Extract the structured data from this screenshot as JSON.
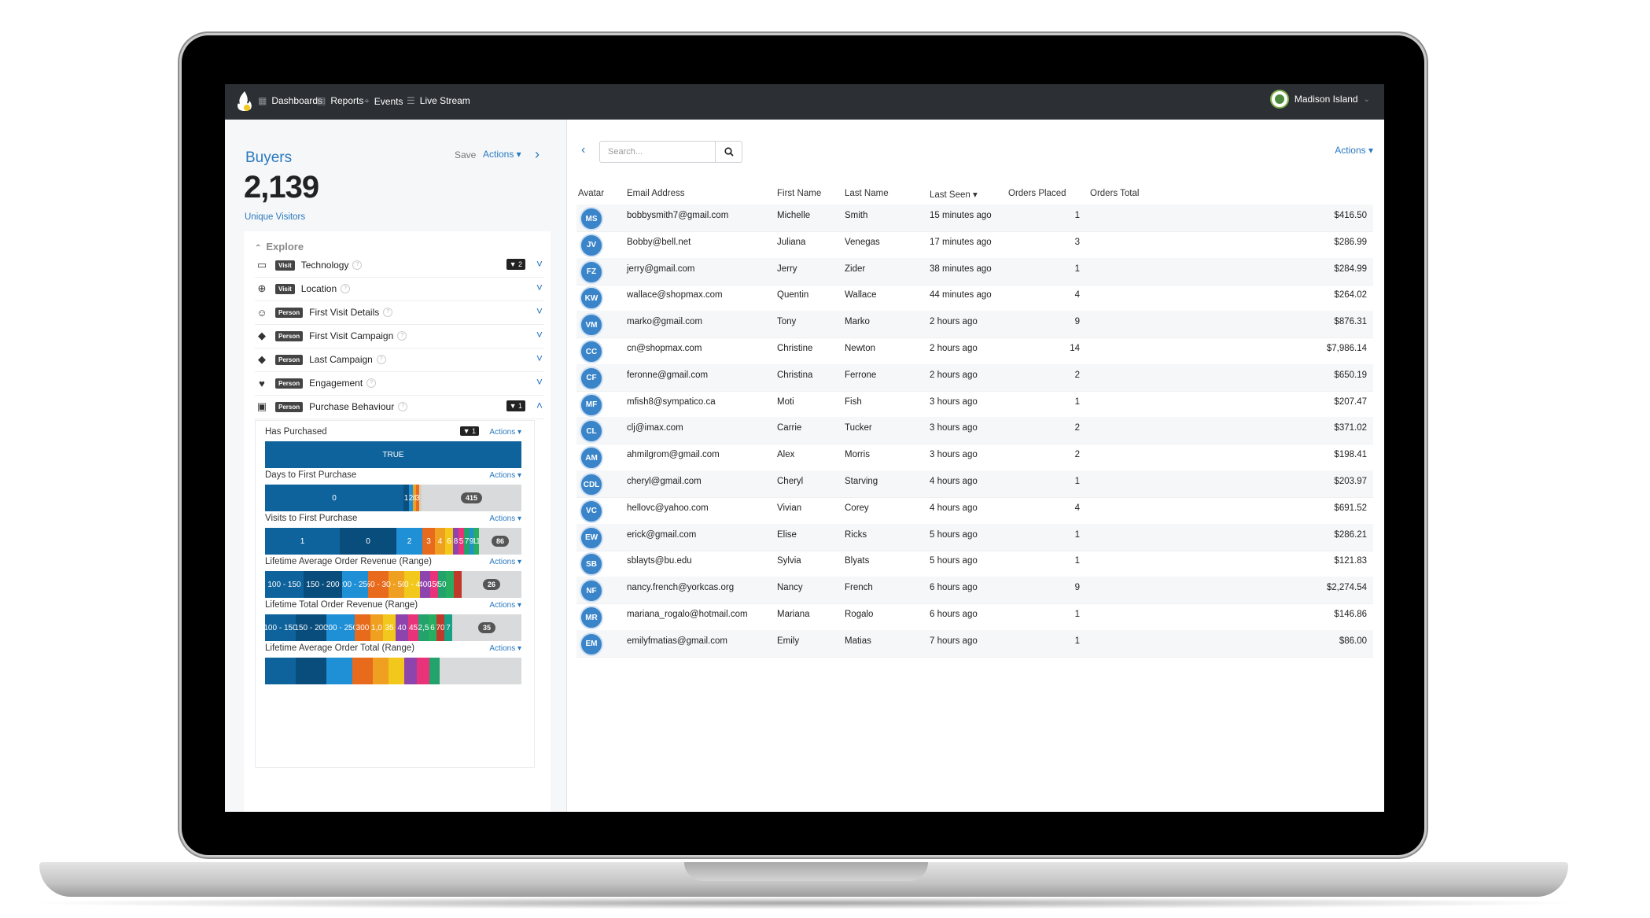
{
  "colors": {
    "accent": "#2a79c0",
    "nav_bg": "#2c2f33",
    "avatar": "#3a84c9",
    "bar_primary": "#0e639c"
  },
  "topnav": {
    "items": [
      {
        "label": "Dashboards",
        "icon": "grid-icon"
      },
      {
        "label": "Reports",
        "icon": "document-icon"
      },
      {
        "label": "Events",
        "icon": "pin-icon"
      },
      {
        "label": "Live Stream",
        "icon": "list-icon"
      }
    ],
    "user": "Madison Island"
  },
  "left": {
    "title": "Buyers",
    "save": "Save",
    "actions": "Actions ▾",
    "count": "2,139",
    "count_label": "Unique Visitors",
    "explore": "Explore",
    "sections": [
      {
        "icon": "monitor-icon",
        "badge": "Visit",
        "label": "Technology",
        "filter": "2"
      },
      {
        "icon": "globe-icon",
        "badge": "Visit",
        "label": "Location",
        "filter": ""
      },
      {
        "icon": "user-plus-icon",
        "badge": "Person",
        "label": "First Visit Details",
        "filter": ""
      },
      {
        "icon": "tag-icon",
        "badge": "Person",
        "label": "First Visit Campaign",
        "filter": ""
      },
      {
        "icon": "tag-icon",
        "badge": "Person",
        "label": "Last Campaign",
        "filter": ""
      },
      {
        "icon": "heart-icon",
        "badge": "Person",
        "label": "Engagement",
        "filter": ""
      },
      {
        "icon": "money-icon",
        "badge": "Person",
        "label": "Purchase Behaviour",
        "filter": "1"
      }
    ],
    "attributes": [
      {
        "title": "Has Purchased",
        "actions": "Actions ▾",
        "filter": "1",
        "segments": [
          {
            "label": "TRUE",
            "share": 1.0,
            "color": "#0e639c"
          }
        ],
        "more": ""
      },
      {
        "title": "Days to First Purchase",
        "actions": "Actions ▾",
        "filter": "",
        "segments": [
          {
            "label": "0",
            "share": 0.54,
            "color": "#0e639c"
          },
          {
            "label": "1",
            "share": 0.02,
            "color": "#0a4f7e"
          },
          {
            "label": "2",
            "share": 0.015,
            "color": "#1f8fd6"
          },
          {
            "label": "4",
            "share": 0.012,
            "color": "#f0a020"
          },
          {
            "label": "3",
            "share": 0.012,
            "color": "#e86a1c"
          },
          {
            "label": "",
            "share": 0.01,
            "color": "#d6d0bb"
          }
        ],
        "more": "415"
      },
      {
        "title": "Visits to First Purchase",
        "actions": "Actions ▾",
        "filter": "",
        "segments": [
          {
            "label": "1",
            "share": 0.29,
            "color": "#0e639c"
          },
          {
            "label": "0",
            "share": 0.22,
            "color": "#094d7c"
          },
          {
            "label": "2",
            "share": 0.1,
            "color": "#1f8fd6"
          },
          {
            "label": "3",
            "share": 0.05,
            "color": "#e86a1c"
          },
          {
            "label": "4",
            "share": 0.04,
            "color": "#f0a020"
          },
          {
            "label": "6",
            "share": 0.03,
            "color": "#f2c81d"
          },
          {
            "label": "8",
            "share": 0.02,
            "color": "#8e44ad"
          },
          {
            "label": "5",
            "share": 0.02,
            "color": "#e8337a"
          },
          {
            "label": "7",
            "share": 0.02,
            "color": "#22a36c"
          },
          {
            "label": "9",
            "share": 0.015,
            "color": "#1f8fd6"
          },
          {
            "label": "11",
            "share": 0.02,
            "color": "#27ae60"
          }
        ],
        "more": "86"
      },
      {
        "title": "Lifetime Average Order Revenue (Range)",
        "actions": "Actions ▾",
        "filter": "",
        "segments": [
          {
            "label": "100 - 150",
            "share": 0.15,
            "color": "#0e639c"
          },
          {
            "label": "150 - 200",
            "share": 0.15,
            "color": "#094d7c"
          },
          {
            "label": "200 - 250",
            "share": 0.1,
            "color": "#1f8fd6"
          },
          {
            "label": "250 - 300",
            "share": 0.08,
            "color": "#e86a1c"
          },
          {
            "label": "0 - 50",
            "share": 0.06,
            "color": "#f0a020"
          },
          {
            "label": "350 - 400",
            "share": 0.06,
            "color": "#f2c81d"
          },
          {
            "label": "400",
            "share": 0.04,
            "color": "#8e44ad"
          },
          {
            "label": "450",
            "share": 0.03,
            "color": "#e8337a"
          },
          {
            "label": "50",
            "share": 0.03,
            "color": "#22a36c"
          },
          {
            "label": "",
            "share": 0.03,
            "color": "#27ae60"
          },
          {
            "label": "",
            "share": 0.03,
            "color": "#c0392b"
          }
        ],
        "more": "26"
      },
      {
        "title": "Lifetime Total Order Revenue (Range)",
        "actions": "Actions ▾",
        "filter": "",
        "segments": [
          {
            "label": "100 - 150",
            "share": 0.12,
            "color": "#0e639c"
          },
          {
            "label": "150 - 200",
            "share": 0.12,
            "color": "#094d7c"
          },
          {
            "label": "200 - 250",
            "share": 0.11,
            "color": "#1f8fd6"
          },
          {
            "label": "300",
            "share": 0.06,
            "color": "#e86a1c"
          },
          {
            "label": "1,0",
            "share": 0.05,
            "color": "#f0a020"
          },
          {
            "label": "35",
            "share": 0.05,
            "color": "#f2c81d"
          },
          {
            "label": "40",
            "share": 0.05,
            "color": "#8e44ad"
          },
          {
            "label": "45",
            "share": 0.04,
            "color": "#e8337a"
          },
          {
            "label": "2,5",
            "share": 0.04,
            "color": "#22a36c"
          },
          {
            "label": "6",
            "share": 0.03,
            "color": "#27ae60"
          },
          {
            "label": "70",
            "share": 0.03,
            "color": "#c0392b"
          },
          {
            "label": "7",
            "share": 0.03,
            "color": "#16a085"
          }
        ],
        "more": "35"
      },
      {
        "title": "Lifetime Average Order Total (Range)",
        "actions": "Actions ▾",
        "filter": "",
        "segments": [
          {
            "label": "",
            "share": 0.12,
            "color": "#0e639c"
          },
          {
            "label": "",
            "share": 0.12,
            "color": "#094d7c"
          },
          {
            "label": "",
            "share": 0.1,
            "color": "#1f8fd6"
          },
          {
            "label": "",
            "share": 0.08,
            "color": "#e86a1c"
          },
          {
            "label": "",
            "share": 0.06,
            "color": "#f0a020"
          },
          {
            "label": "",
            "share": 0.06,
            "color": "#f2c81d"
          },
          {
            "label": "",
            "share": 0.05,
            "color": "#8e44ad"
          },
          {
            "label": "",
            "share": 0.05,
            "color": "#e8337a"
          },
          {
            "label": "",
            "share": 0.04,
            "color": "#22a36c"
          }
        ],
        "more": ""
      }
    ]
  },
  "right": {
    "search_placeholder": "Search...",
    "actions": "Actions ▾",
    "columns": [
      "Avatar",
      "Email Address",
      "First Name",
      "Last Name",
      "Last Seen ▾",
      "Orders Placed",
      "Orders Total"
    ],
    "rows": [
      [
        "MS",
        "bobbysmith7@gmail.com",
        "Michelle",
        "Smith",
        "15 minutes ago",
        "1",
        "$416.50"
      ],
      [
        "JV",
        "Bobby@bell.net",
        "Juliana",
        "Venegas",
        "17 minutes ago",
        "3",
        "$286.99"
      ],
      [
        "FZ",
        "jerry@gmail.com",
        "Jerry",
        "Zider",
        "38 minutes ago",
        "1",
        "$284.99"
      ],
      [
        "KW",
        "wallace@shopmax.com",
        "Quentin",
        "Wallace",
        "44 minutes ago",
        "4",
        "$264.02"
      ],
      [
        "VM",
        "marko@gmail.com",
        "Tony",
        "Marko",
        "2 hours ago",
        "9",
        "$876.31"
      ],
      [
        "CC",
        "cn@shopmax.com",
        "Christine",
        "Newton",
        "2 hours ago",
        "14",
        "$7,986.14"
      ],
      [
        "CF",
        "feronne@gmail.com",
        "Christina",
        "Ferrone",
        "2 hours ago",
        "2",
        "$650.19"
      ],
      [
        "MF",
        "mfish8@sympatico.ca",
        "Moti",
        "Fish",
        "3 hours ago",
        "1",
        "$207.47"
      ],
      [
        "CL",
        "clj@imax.com",
        "Carrie",
        "Tucker",
        "3 hours ago",
        "2",
        "$371.02"
      ],
      [
        "AM",
        "ahmilgrom@gmail.com",
        "Alex",
        "Morris",
        "3 hours ago",
        "2",
        "$198.41"
      ],
      [
        "CDL",
        "cheryl@gmail.com",
        "Cheryl",
        "Starving",
        "4 hours ago",
        "1",
        "$203.97"
      ],
      [
        "VC",
        "hellovc@yahoo.com",
        "Vivian",
        "Corey",
        "4 hours ago",
        "4",
        "$691.52"
      ],
      [
        "EW",
        "erick@gmail.com",
        "Elise",
        "Ricks",
        "5 hours ago",
        "1",
        "$286.21"
      ],
      [
        "SB",
        "sblayts@bu.edu",
        "Sylvia",
        "Blyats",
        "5 hours ago",
        "1",
        "$121.83"
      ],
      [
        "NF",
        "nancy.french@yorkcas.org",
        "Nancy",
        "French",
        "6 hours ago",
        "9",
        "$2,274.54"
      ],
      [
        "MR",
        "mariana_rogalo@hotmail.com",
        "Mariana",
        "Rogalo",
        "6 hours ago",
        "1",
        "$146.86"
      ],
      [
        "EM",
        "emilyfmatias@gmail.com",
        "Emily",
        "Matias",
        "7 hours ago",
        "1",
        "$86.00"
      ]
    ]
  }
}
